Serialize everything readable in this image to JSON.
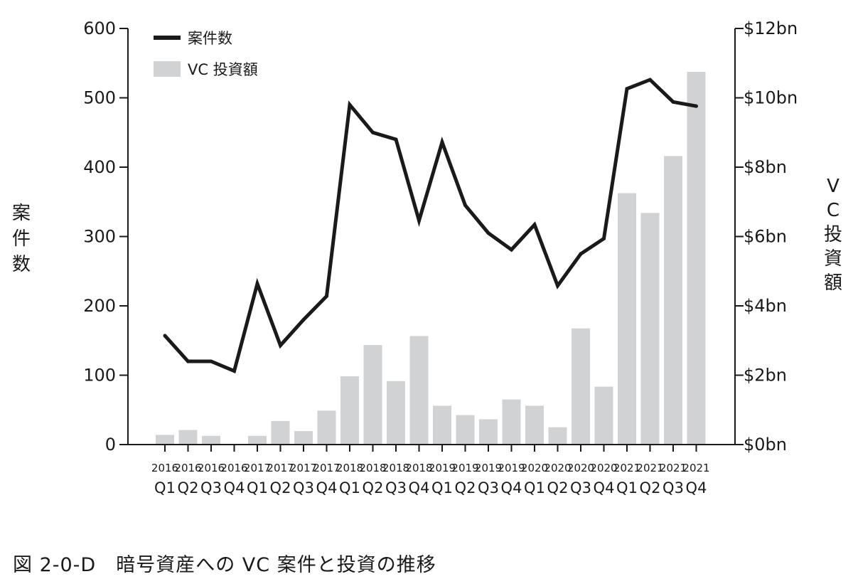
{
  "caption": "図 2-0-D　暗号資産への VC 案件と投資の推移",
  "colors": {
    "line": "#1a1a1a",
    "bar": "#d1d2d4",
    "axis": "#1a1a1a"
  },
  "chart_data": {
    "type": "bar+line",
    "legend_placement": "top-left",
    "grid": false,
    "left_axis": {
      "title": "案件数",
      "range": [
        0,
        600
      ],
      "ticks": [
        "0",
        "100",
        "200",
        "300",
        "400",
        "500",
        "600"
      ]
    },
    "right_axis": {
      "title": "VC 投資額",
      "range": [
        0,
        12
      ],
      "ticks": [
        "$0bn",
        "$2bn",
        "$4bn",
        "$6bn",
        "$8bn",
        "$10bn",
        "$12bn"
      ]
    },
    "categories": [
      {
        "year": "2016",
        "q": "Q1"
      },
      {
        "year": "2016",
        "q": "Q2"
      },
      {
        "year": "2016",
        "q": "Q3"
      },
      {
        "year": "2016",
        "q": "Q4"
      },
      {
        "year": "2017",
        "q": "Q1"
      },
      {
        "year": "2017",
        "q": "Q2"
      },
      {
        "year": "2017",
        "q": "Q3"
      },
      {
        "year": "2017",
        "q": "Q4"
      },
      {
        "year": "2018",
        "q": "Q1"
      },
      {
        "year": "2018",
        "q": "Q2"
      },
      {
        "year": "2018",
        "q": "Q3"
      },
      {
        "year": "2018",
        "q": "Q4"
      },
      {
        "year": "2019",
        "q": "Q1"
      },
      {
        "year": "2019",
        "q": "Q2"
      },
      {
        "year": "2019",
        "q": "Q3"
      },
      {
        "year": "2019",
        "q": "Q4"
      },
      {
        "year": "2020",
        "q": "Q1"
      },
      {
        "year": "2020",
        "q": "Q2"
      },
      {
        "year": "2020",
        "q": "Q3"
      },
      {
        "year": "2020",
        "q": "Q4"
      },
      {
        "year": "2021",
        "q": "Q1"
      },
      {
        "year": "2021",
        "q": "Q2"
      },
      {
        "year": "2021",
        "q": "Q3"
      },
      {
        "year": "2021",
        "q": "Q4"
      }
    ],
    "series": [
      {
        "name": "案件数",
        "type": "line",
        "axis": "left",
        "values": [
          157,
          120,
          120,
          106,
          232,
          143,
          180,
          214,
          490,
          450,
          440,
          323,
          436,
          345,
          305,
          281,
          317,
          229,
          275,
          297,
          513,
          526,
          494,
          488
        ]
      },
      {
        "name": "VC 投資額",
        "type": "bar",
        "axis": "right",
        "values": [
          0.28,
          0.42,
          0.25,
          0.0,
          0.25,
          0.68,
          0.39,
          0.98,
          1.97,
          2.87,
          1.83,
          3.13,
          1.12,
          0.85,
          0.73,
          1.3,
          1.12,
          0.5,
          3.35,
          1.67,
          7.25,
          6.68,
          8.32,
          10.75
        ]
      }
    ]
  }
}
